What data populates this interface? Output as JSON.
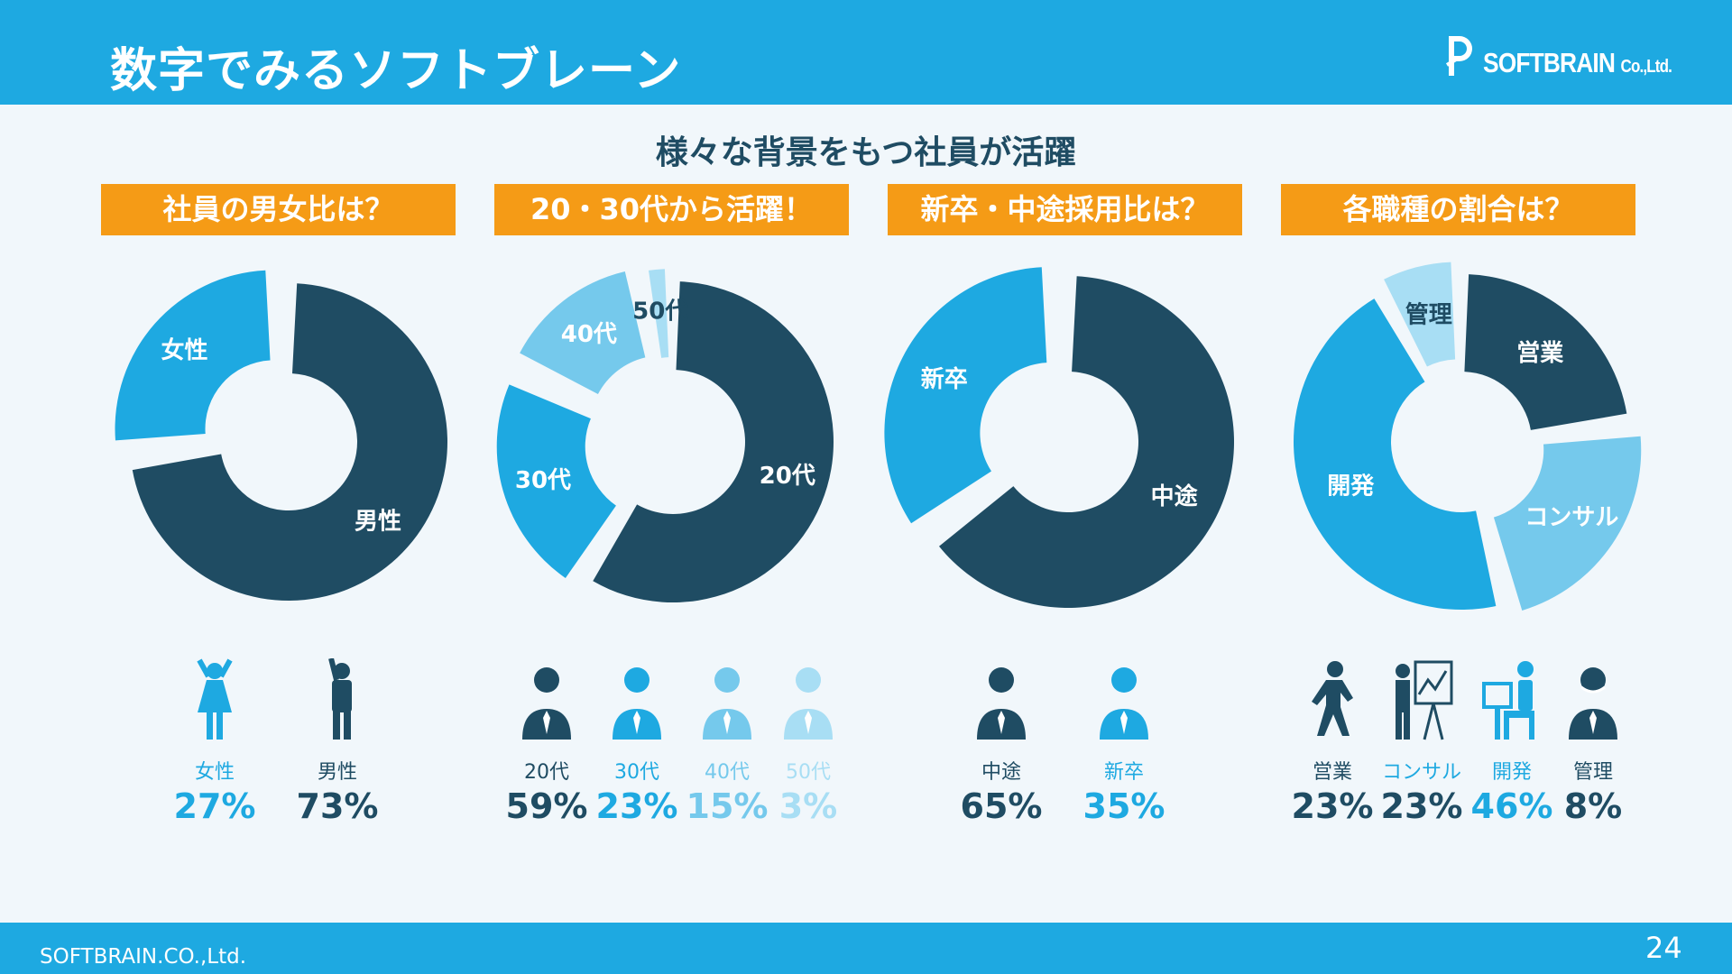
{
  "header": {
    "title": "数字でみるソフトブレーン",
    "logo_text": "SOFTBRAIN",
    "logo_suffix": "Co.,Ltd."
  },
  "subtitle": "様々な背景をもつ社員が活躍",
  "colors": {
    "header": "#1ea9e1",
    "banner": "#f59b16",
    "dark": "#1f4c63",
    "mid": "#1ea9e1",
    "light": "#75c9ec",
    "pale": "#a8def4"
  },
  "chart_data": [
    {
      "type": "pie",
      "title": "社員の男女比は？",
      "donut": true,
      "slices": [
        {
          "label": "男性",
          "value": 73,
          "color": "#1f4c63"
        },
        {
          "label": "女性",
          "value": 27,
          "color": "#1ea9e1"
        }
      ]
    },
    {
      "type": "pie",
      "title": "20・30代から活躍！",
      "donut": true,
      "slices": [
        {
          "label": "20代",
          "value": 59,
          "color": "#1f4c63"
        },
        {
          "label": "30代",
          "value": 23,
          "color": "#1ea9e1"
        },
        {
          "label": "40代",
          "value": 15,
          "color": "#75c9ec"
        },
        {
          "label": "50代",
          "value": 3,
          "color": "#a8def4"
        }
      ]
    },
    {
      "type": "pie",
      "title": "新卒・中途採用比は？",
      "donut": true,
      "slices": [
        {
          "label": "中途",
          "value": 65,
          "color": "#1f4c63"
        },
        {
          "label": "新卒",
          "value": 35,
          "color": "#1ea9e1"
        }
      ]
    },
    {
      "type": "pie",
      "title": "各職種の割合は？",
      "donut": true,
      "slices": [
        {
          "label": "営業",
          "value": 23,
          "color": "#1f4c63"
        },
        {
          "label": "コンサル",
          "value": 23,
          "color": "#75c9ec"
        },
        {
          "label": "開発",
          "value": 46,
          "color": "#1ea9e1"
        },
        {
          "label": "管理",
          "value": 8,
          "color": "#a8def4"
        }
      ]
    }
  ],
  "stats": [
    {
      "label": "女性",
      "value": "27%",
      "color": "#1ea9e1",
      "label_color": "#1ea9e1",
      "icon": "woman-icon"
    },
    {
      "label": "男性",
      "value": "73%",
      "color": "#1f4c63",
      "label_color": "#1f4c63",
      "icon": "man-icon"
    },
    {
      "label": "20代",
      "value": "59%",
      "color": "#1f4c63",
      "label_color": "#1f4c63",
      "icon": "person-20s-icon"
    },
    {
      "label": "30代",
      "value": "23%",
      "color": "#1ea9e1",
      "label_color": "#1ea9e1",
      "icon": "person-30s-icon"
    },
    {
      "label": "40代",
      "value": "15%",
      "color": "#75c9ec",
      "label_color": "#75c9ec",
      "icon": "person-40s-icon"
    },
    {
      "label": "50代",
      "value": "3%",
      "color": "#a8def4",
      "label_color": "#a8def4",
      "icon": "person-50s-icon"
    },
    {
      "label": "中途",
      "value": "65%",
      "color": "#1f4c63",
      "label_color": "#1f4c63",
      "icon": "mid-career-icon"
    },
    {
      "label": "新卒",
      "value": "35%",
      "color": "#1ea9e1",
      "label_color": "#1ea9e1",
      "icon": "new-graduate-icon"
    },
    {
      "label": "営業",
      "value": "23%",
      "color": "#1f4c63",
      "label_color": "#1f4c63",
      "icon": "sales-icon"
    },
    {
      "label": "コンサル",
      "value": "23%",
      "color": "#1f4c63",
      "label_color": "#1ea9e1",
      "icon": "consulting-icon"
    },
    {
      "label": "開発",
      "value": "46%",
      "color": "#1ea9e1",
      "label_color": "#1ea9e1",
      "icon": "development-icon"
    },
    {
      "label": "管理",
      "value": "8%",
      "color": "#1f4c63",
      "label_color": "#1f4c63",
      "icon": "management-icon"
    }
  ],
  "footer": {
    "company": "SOFTBRAIN.CO.,Ltd.",
    "page": "24"
  }
}
